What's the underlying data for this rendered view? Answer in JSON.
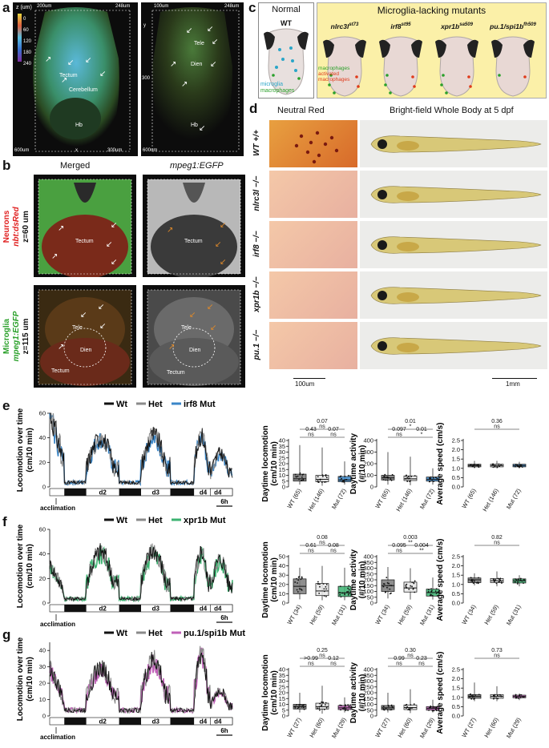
{
  "panels": {
    "a": {
      "label": "a",
      "scale_unit": "z (um)",
      "scale_ticks": [
        "0",
        "60",
        "120",
        "180",
        "240"
      ],
      "left": {
        "top_left": "200um",
        "top_right": "248um",
        "bottom_left": "600um",
        "bottom_x": "x",
        "bottom_right": "300um",
        "labels": [
          "Tectum",
          "Cerebellum",
          "Hb"
        ]
      },
      "right": {
        "top_left": "100um",
        "top_right": "248um",
        "side_y": "y",
        "side_300": "300",
        "bottom_left": "600um",
        "labels": [
          "Tele",
          "Dien",
          "Hb"
        ]
      }
    },
    "b": {
      "label": "b",
      "col1": "Merged",
      "col2": "mpeg1:EGFP",
      "row1_side_red1": "Neurons",
      "row1_side_red2": "nbt:dsRed",
      "row1_z": "z=60 um",
      "row2_side_green1": "Microglia",
      "row2_side_green2": "mpeg1:EGFP",
      "row2_z": "z=115 um",
      "labels": [
        "Tectum",
        "Tele",
        "Dien"
      ]
    },
    "c": {
      "label": "c",
      "normal_title": "Normal",
      "normal_sub": "WT",
      "mut_title": "Microglia-lacking mutants",
      "mutants": [
        "nlrc3l",
        "irf8",
        "xpr1b",
        "pu.1/spi1b"
      ],
      "mutant_sups": [
        "st73",
        "st95",
        "sa509",
        "fh509"
      ],
      "legend_wt": [
        "microglia",
        "macrophages"
      ],
      "legend_mut": [
        "macrophages",
        "activated",
        "macrophages"
      ]
    },
    "d": {
      "label": "d",
      "col1": "Neutral Red",
      "col2": "Bright-field Whole Body at 5 dpf",
      "rows": [
        "WT +/+",
        "nlrc3l −/−",
        "irf8 −/−",
        "xpr1b −/−",
        "pu.1 −/−"
      ],
      "scale1": "100um",
      "scale2": "1mm"
    },
    "e": {
      "label": "e",
      "mutant": "irf8",
      "mut_color": "#3a86c8"
    },
    "f": {
      "label": "f",
      "mutant": "xpr1b",
      "mut_color": "#3cb371"
    },
    "g": {
      "label": "g",
      "mutant": "pu.1/spi1b",
      "mut_color": "#c060b8"
    }
  },
  "common": {
    "legend_wt": "Wt",
    "legend_het": "Het",
    "legend_mut_suffix": "Mut",
    "loc_ylabel1": "Locomotion over time",
    "loc_ylabel2": "(cm/10 min)",
    "loc_yticks": [
      "0",
      "20",
      "40",
      "60"
    ],
    "days": [
      "d2",
      "d3",
      "d4"
    ],
    "acclimation": "acclimation",
    "scalebar": "6h",
    "box1_ylabel1": "Daytime locomotion",
    "box1_ylabel2": "(cm/10 min)",
    "box2_ylabel1": "Daytime activity",
    "box2_ylabel2": "(#/10 min)",
    "box3_ylabel": "Average speed (cm/s)"
  },
  "chart_data": [
    {
      "type": "line",
      "panel": "e",
      "xlabel": "",
      "ylabel": "Locomotion over time (cm/10 min)",
      "ylim": [
        0,
        60
      ],
      "series": [
        {
          "name": "Wt"
        },
        {
          "name": "Het"
        },
        {
          "name": "irf8 Mut"
        }
      ],
      "peaks": [
        62,
        45,
        47,
        47,
        31
      ],
      "troughs": [
        3,
        3,
        3,
        3
      ]
    },
    {
      "type": "box",
      "panel": "e",
      "ylabel": "Daytime locomotion (cm/10 min)",
      "yticks": [
        "0",
        "5",
        "10",
        "15",
        "20",
        "25",
        "30",
        "35",
        "40"
      ],
      "ylim": [
        0,
        40
      ],
      "categories": [
        "WT (65)",
        "Het (146)",
        "Mut (72)"
      ],
      "medians": [
        7,
        6.5,
        6
      ],
      "q1": [
        5,
        4.5,
        4.5
      ],
      "q3": [
        11,
        10,
        9
      ],
      "min": [
        2,
        1,
        2
      ],
      "max": [
        36,
        34,
        22
      ],
      "stats": [
        {
          "from": 0,
          "to": 2,
          "p": "0.07",
          "sig": "ns"
        },
        {
          "from": 0,
          "to": 1,
          "p": "0.43",
          "sig": "ns"
        },
        {
          "from": 1,
          "to": 2,
          "p": "0.07",
          "sig": "ns"
        }
      ]
    },
    {
      "type": "box",
      "panel": "e",
      "ylabel": "Daytime activity (#/10 min)",
      "yticks": [
        "0",
        "100",
        "200",
        "300",
        "400"
      ],
      "ylim": [
        0,
        400
      ],
      "categories": [
        "WT (65)",
        "Het (146)",
        "Mut (72)"
      ],
      "medians": [
        78,
        70,
        65
      ],
      "q1": [
        60,
        55,
        50
      ],
      "q3": [
        100,
        95,
        85
      ],
      "min": [
        20,
        15,
        20
      ],
      "max": [
        300,
        260,
        160
      ],
      "stats": [
        {
          "from": 0,
          "to": 2,
          "p": "0.01",
          "sig": "*"
        },
        {
          "from": 0,
          "to": 1,
          "p": "0.097",
          "sig": "ns"
        },
        {
          "from": 1,
          "to": 2,
          "p": "0.01",
          "sig": "*"
        }
      ]
    },
    {
      "type": "box",
      "panel": "e",
      "ylabel": "Average speed (cm/s)",
      "yticks": [
        "0.0",
        "0.5",
        "1.0",
        "1.5",
        "2.0",
        "2.5"
      ],
      "ylim": [
        0,
        2.5
      ],
      "categories": [
        "WT (65)",
        "Het (146)",
        "Mut (72)"
      ],
      "medians": [
        1.15,
        1.15,
        1.15
      ],
      "q1": [
        1.08,
        1.08,
        1.08
      ],
      "q3": [
        1.22,
        1.22,
        1.22
      ],
      "min": [
        1.0,
        1.0,
        1.0
      ],
      "max": [
        1.4,
        1.4,
        1.35
      ],
      "stats": [
        {
          "from": 0,
          "to": 2,
          "p": "0.36",
          "sig": "ns"
        }
      ]
    },
    {
      "type": "line",
      "panel": "f",
      "xlabel": "",
      "ylabel": "Locomotion over time (cm/10 min)",
      "ylim": [
        0,
        60
      ],
      "series": [
        {
          "name": "Wt"
        },
        {
          "name": "Het"
        },
        {
          "name": "xpr1b Mut"
        }
      ],
      "peaks": [
        32,
        47,
        48,
        47,
        40
      ],
      "troughs": [
        3,
        3,
        3,
        3
      ]
    },
    {
      "type": "box",
      "panel": "f",
      "ylabel": "Daytime locomotion (cm/10 min)",
      "yticks": [
        "0",
        "10",
        "20",
        "30",
        "40",
        "50"
      ],
      "ylim": [
        0,
        50
      ],
      "categories": [
        "WT (34)",
        "Het (59)",
        "Mut (31)"
      ],
      "medians": [
        18,
        13,
        11
      ],
      "q1": [
        10,
        8,
        7
      ],
      "q3": [
        26,
        21,
        18
      ],
      "min": [
        4,
        3,
        3
      ],
      "max": [
        38,
        40,
        38
      ],
      "stats": [
        {
          "from": 0,
          "to": 2,
          "p": "0.08",
          "sig": "ns"
        },
        {
          "from": 0,
          "to": 1,
          "p": "0.61",
          "sig": "ns"
        },
        {
          "from": 1,
          "to": 2,
          "p": "0.08",
          "sig": "ns"
        }
      ]
    },
    {
      "type": "box",
      "panel": "f",
      "ylabel": "Daytime activity (#/10 min)",
      "yticks": [
        "0",
        "50",
        "100",
        "150",
        "200",
        "250",
        "300",
        "350",
        "400"
      ],
      "ylim": [
        0,
        400
      ],
      "categories": [
        "WT (34)",
        "Het (59)",
        "Mut (31)"
      ],
      "medians": [
        150,
        130,
        90
      ],
      "q1": [
        100,
        95,
        60
      ],
      "q3": [
        200,
        180,
        120
      ],
      "min": [
        40,
        30,
        30
      ],
      "max": [
        310,
        300,
        220
      ],
      "stats": [
        {
          "from": 0,
          "to": 2,
          "p": "0.003",
          "sig": "**"
        },
        {
          "from": 0,
          "to": 1,
          "p": "0.095",
          "sig": "ns"
        },
        {
          "from": 1,
          "to": 2,
          "p": "0.004",
          "sig": "**"
        }
      ]
    },
    {
      "type": "box",
      "panel": "f",
      "ylabel": "Average speed (cm/s)",
      "yticks": [
        "0.0",
        "0.5",
        "1.0",
        "1.5",
        "2.0",
        "2.5"
      ],
      "ylim": [
        0,
        2.5
      ],
      "categories": [
        "WT (34)",
        "Het (59)",
        "Mut (31)"
      ],
      "medians": [
        1.25,
        1.2,
        1.2
      ],
      "q1": [
        1.1,
        1.1,
        1.08
      ],
      "q3": [
        1.35,
        1.32,
        1.3
      ],
      "min": [
        0.95,
        0.9,
        0.9
      ],
      "max": [
        1.6,
        1.7,
        1.5
      ],
      "stats": [
        {
          "from": 0,
          "to": 2,
          "p": "0.82",
          "sig": "ns"
        }
      ]
    },
    {
      "type": "line",
      "panel": "g",
      "xlabel": "",
      "ylabel": "Locomotion over time (cm/10 min)",
      "ylim": [
        0,
        45
      ],
      "series": [
        {
          "name": "Wt"
        },
        {
          "name": "Het"
        },
        {
          "name": "pu.1/spi1b Mut"
        }
      ],
      "peaks": [
        30,
        33,
        38,
        42,
        17
      ],
      "troughs": [
        3,
        3,
        3,
        3
      ]
    },
    {
      "type": "box",
      "panel": "g",
      "ylabel": "Daytime locomotion (cm/10 min)",
      "yticks": [
        "0",
        "5",
        "10",
        "15",
        "20",
        "25",
        "30",
        "35",
        "40"
      ],
      "ylim": [
        0,
        40
      ],
      "categories": [
        "WT (27)",
        "Het (60)",
        "Mut (29)"
      ],
      "medians": [
        8,
        8,
        7
      ],
      "q1": [
        6,
        6,
        5.5
      ],
      "q3": [
        10,
        11,
        9
      ],
      "min": [
        3,
        2,
        3
      ],
      "max": [
        20,
        26,
        16
      ],
      "stats": [
        {
          "from": 0,
          "to": 2,
          "p": "0.25",
          "sig": "ns"
        },
        {
          "from": 0,
          "to": 1,
          "p": ">0.99",
          "sig": "ns"
        },
        {
          "from": 1,
          "to": 2,
          "p": "0.12",
          "sig": "ns"
        }
      ]
    },
    {
      "type": "box",
      "panel": "g",
      "ylabel": "Daytime activity (#/10 min)",
      "yticks": [
        "0",
        "50",
        "100",
        "150",
        "200",
        "250",
        "300",
        "350",
        "400"
      ],
      "ylim": [
        0,
        400
      ],
      "categories": [
        "WT (27)",
        "Het (60)",
        "Mut (29)"
      ],
      "medians": [
        70,
        72,
        65
      ],
      "q1": [
        55,
        55,
        50
      ],
      "q3": [
        90,
        95,
        80
      ],
      "min": [
        30,
        25,
        30
      ],
      "max": [
        200,
        230,
        140
      ],
      "stats": [
        {
          "from": 0,
          "to": 2,
          "p": "0.30",
          "sig": "ns"
        },
        {
          "from": 0,
          "to": 1,
          "p": "0.99",
          "sig": "ns"
        },
        {
          "from": 1,
          "to": 2,
          "p": "0.23",
          "sig": "ns"
        }
      ]
    },
    {
      "type": "box",
      "panel": "g",
      "ylabel": "Average speed (cm/s)",
      "yticks": [
        "0.0",
        "0.5",
        "1.0",
        "1.5",
        "2.0",
        "2.5"
      ],
      "ylim": [
        0,
        2.5
      ],
      "categories": [
        "WT (27)",
        "Het (60)",
        "Mut (29)"
      ],
      "medians": [
        1.05,
        1.05,
        1.05
      ],
      "q1": [
        0.95,
        0.95,
        0.98
      ],
      "q3": [
        1.15,
        1.15,
        1.12
      ],
      "min": [
        0.8,
        0.8,
        0.85
      ],
      "max": [
        1.8,
        1.6,
        1.2
      ],
      "stats": [
        {
          "from": 0,
          "to": 2,
          "p": "0.73",
          "sig": "ns"
        }
      ]
    }
  ]
}
